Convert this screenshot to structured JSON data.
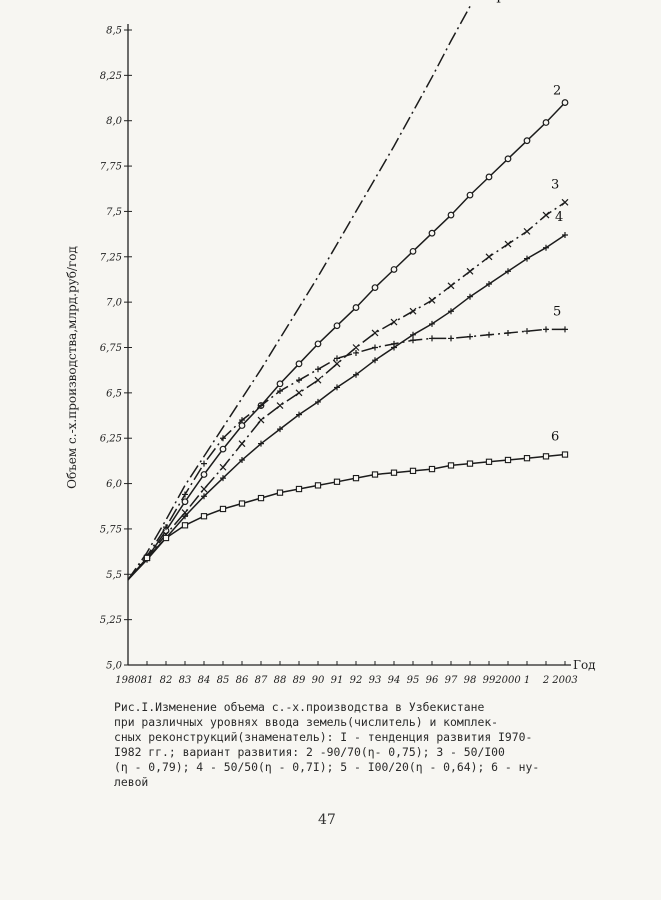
{
  "chart_data": {
    "type": "line",
    "x": [
      1980,
      1981,
      1982,
      1983,
      1984,
      1985,
      1986,
      1987,
      1988,
      1989,
      1990,
      1991,
      1992,
      1993,
      1994,
      1995,
      1996,
      1997,
      1998,
      1999,
      2000,
      2001,
      2002,
      2003
    ],
    "x_tick_labels": [
      "1980",
      "81",
      "82",
      "83",
      "84",
      "85",
      "86",
      "87",
      "88",
      "89",
      "90",
      "91",
      "92",
      "93",
      "94",
      "95",
      "96",
      "97",
      "98",
      "99",
      "2000",
      "1",
      "2",
      "2003"
    ],
    "y_ticks": [
      5.0,
      5.25,
      5.5,
      5.75,
      6.0,
      6.25,
      6.5,
      6.75,
      7.0,
      7.25,
      7.5,
      7.75,
      8.0,
      8.25,
      8.5
    ],
    "y_tick_labels": [
      "5,0",
      "5,25",
      "5,5",
      "5,75",
      "6,0",
      "6,25",
      "6,5",
      "6,75",
      "7,0",
      "7,25",
      "7,5",
      "7,75",
      "8,0",
      "8,25",
      "8,5"
    ],
    "ylim": [
      5.0,
      8.5
    ],
    "xlabel": "Год",
    "ylabel": "Объем с.-х.производства,млрд.руб/год",
    "grid": false,
    "series": [
      {
        "name": "I",
        "style": "dash-dot",
        "marker": "none",
        "x": [
          1980,
          1981,
          1982,
          1983,
          1984,
          1985,
          1986,
          1987,
          1988,
          1989,
          1990,
          1991,
          1992,
          1993,
          1994,
          1995,
          1996,
          1997,
          1998
        ],
        "values": [
          5.47,
          5.62,
          5.8,
          5.99,
          6.15,
          6.31,
          6.47,
          6.63,
          6.8,
          6.97,
          7.14,
          7.32,
          7.5,
          7.68,
          7.86,
          8.05,
          8.24,
          8.44,
          8.63
        ]
      },
      {
        "name": "2",
        "style": "solid",
        "marker": "circle",
        "x": [
          1980,
          1981,
          1982,
          1983,
          1984,
          1985,
          1986,
          1987,
          1988,
          1989,
          1990,
          1991,
          1992,
          1993,
          1994,
          1995,
          1996,
          1997,
          1998,
          1999,
          2000,
          2001,
          2002,
          2003
        ],
        "values": [
          5.47,
          5.59,
          5.74,
          5.9,
          6.05,
          6.19,
          6.32,
          6.43,
          6.55,
          6.66,
          6.77,
          6.87,
          6.97,
          7.08,
          7.18,
          7.28,
          7.38,
          7.48,
          7.59,
          7.69,
          7.79,
          7.89,
          7.99,
          8.1
        ]
      },
      {
        "name": "3",
        "style": "dash-dot",
        "marker": "x",
        "x": [
          1980,
          1981,
          1982,
          1983,
          1984,
          1985,
          1986,
          1987,
          1988,
          1989,
          1990,
          1991,
          1992,
          1993,
          1994,
          1995,
          1996,
          1997,
          1998,
          1999,
          2000,
          2001,
          2002,
          2003
        ],
        "values": [
          5.47,
          5.59,
          5.72,
          5.84,
          5.97,
          6.09,
          6.22,
          6.35,
          6.43,
          6.5,
          6.57,
          6.66,
          6.75,
          6.83,
          6.89,
          6.95,
          7.01,
          7.09,
          7.17,
          7.25,
          7.32,
          7.39,
          7.48,
          7.55
        ]
      },
      {
        "name": "4",
        "style": "solid",
        "marker": "plus",
        "x": [
          1980,
          1981,
          1982,
          1983,
          1984,
          1985,
          1986,
          1987,
          1988,
          1989,
          1990,
          1991,
          1992,
          1993,
          1994,
          1995,
          1996,
          1997,
          1998,
          1999,
          2000,
          2001,
          2002,
          2003
        ],
        "values": [
          5.47,
          5.58,
          5.7,
          5.82,
          5.93,
          6.03,
          6.13,
          6.22,
          6.3,
          6.38,
          6.45,
          6.53,
          6.6,
          6.68,
          6.75,
          6.82,
          6.88,
          6.95,
          7.03,
          7.1,
          7.17,
          7.24,
          7.3,
          7.37
        ]
      },
      {
        "name": "5",
        "style": "dash-dot",
        "marker": "plus",
        "x": [
          1980,
          1981,
          1982,
          1983,
          1984,
          1985,
          1986,
          1987,
          1988,
          1989,
          1990,
          1991,
          1992,
          1993,
          1994,
          1995,
          1996,
          1997,
          1998,
          1999,
          2000,
          2001,
          2002,
          2003
        ],
        "values": [
          5.47,
          5.6,
          5.76,
          5.94,
          6.11,
          6.25,
          6.35,
          6.43,
          6.51,
          6.57,
          6.63,
          6.69,
          6.72,
          6.75,
          6.77,
          6.79,
          6.8,
          6.8,
          6.81,
          6.82,
          6.83,
          6.84,
          6.85,
          6.85
        ]
      },
      {
        "name": "6",
        "style": "solid",
        "marker": "square",
        "x": [
          1980,
          1981,
          1982,
          1983,
          1984,
          1985,
          1986,
          1987,
          1988,
          1989,
          1990,
          1991,
          1992,
          1993,
          1994,
          1995,
          1996,
          1997,
          1998,
          1999,
          2000,
          2001,
          2002,
          2003
        ],
        "values": [
          5.47,
          5.59,
          5.7,
          5.77,
          5.82,
          5.86,
          5.89,
          5.92,
          5.95,
          5.97,
          5.99,
          6.01,
          6.03,
          6.05,
          6.06,
          6.07,
          6.08,
          6.1,
          6.11,
          6.12,
          6.13,
          6.14,
          6.15,
          6.16
        ]
      }
    ]
  },
  "caption": "Рис.I.Изменение объема с.-х.производства в Узбекистане\nпри различных уровнях ввода земель(числитель) и комплек-\nсных реконструкций(знаменатель): I - тенденция развития I970-\nI982 гг.; вариант развития: 2 -90/70(η- 0,75); 3 - 50/I00\n(η - 0,79); 4 - 50/50(η - 0,7I); 5 - I00/20(η - 0,64); 6 - ну-\nлевой",
  "page_number": "47"
}
